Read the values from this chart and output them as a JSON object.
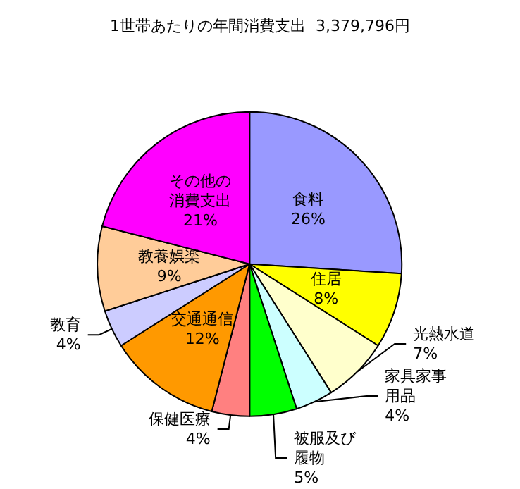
{
  "chart_data": {
    "type": "pie",
    "title": "1世帯あたりの年間消費支出  3,379,796円",
    "categories": [
      "食料",
      "住居",
      "光熱水道",
      "家具家事用品",
      "被服及び履物",
      "保健医療",
      "交通通信",
      "教育",
      "教養娯楽",
      "その他の消費支出"
    ],
    "values": [
      26,
      8,
      7,
      4,
      5,
      4,
      12,
      4,
      9,
      21
    ],
    "value_labels": [
      "26%",
      "8%",
      "7%",
      "4%",
      "5%",
      "4%",
      "12%",
      "4%",
      "9%",
      "21%"
    ],
    "colors": [
      "#9999ff",
      "#ffff00",
      "#ffffcc",
      "#ccffff",
      "#00ff00",
      "#ff8080",
      "#ff9900",
      "#ccccff",
      "#ffcc99",
      "#ff00ff"
    ],
    "legend": false
  }
}
